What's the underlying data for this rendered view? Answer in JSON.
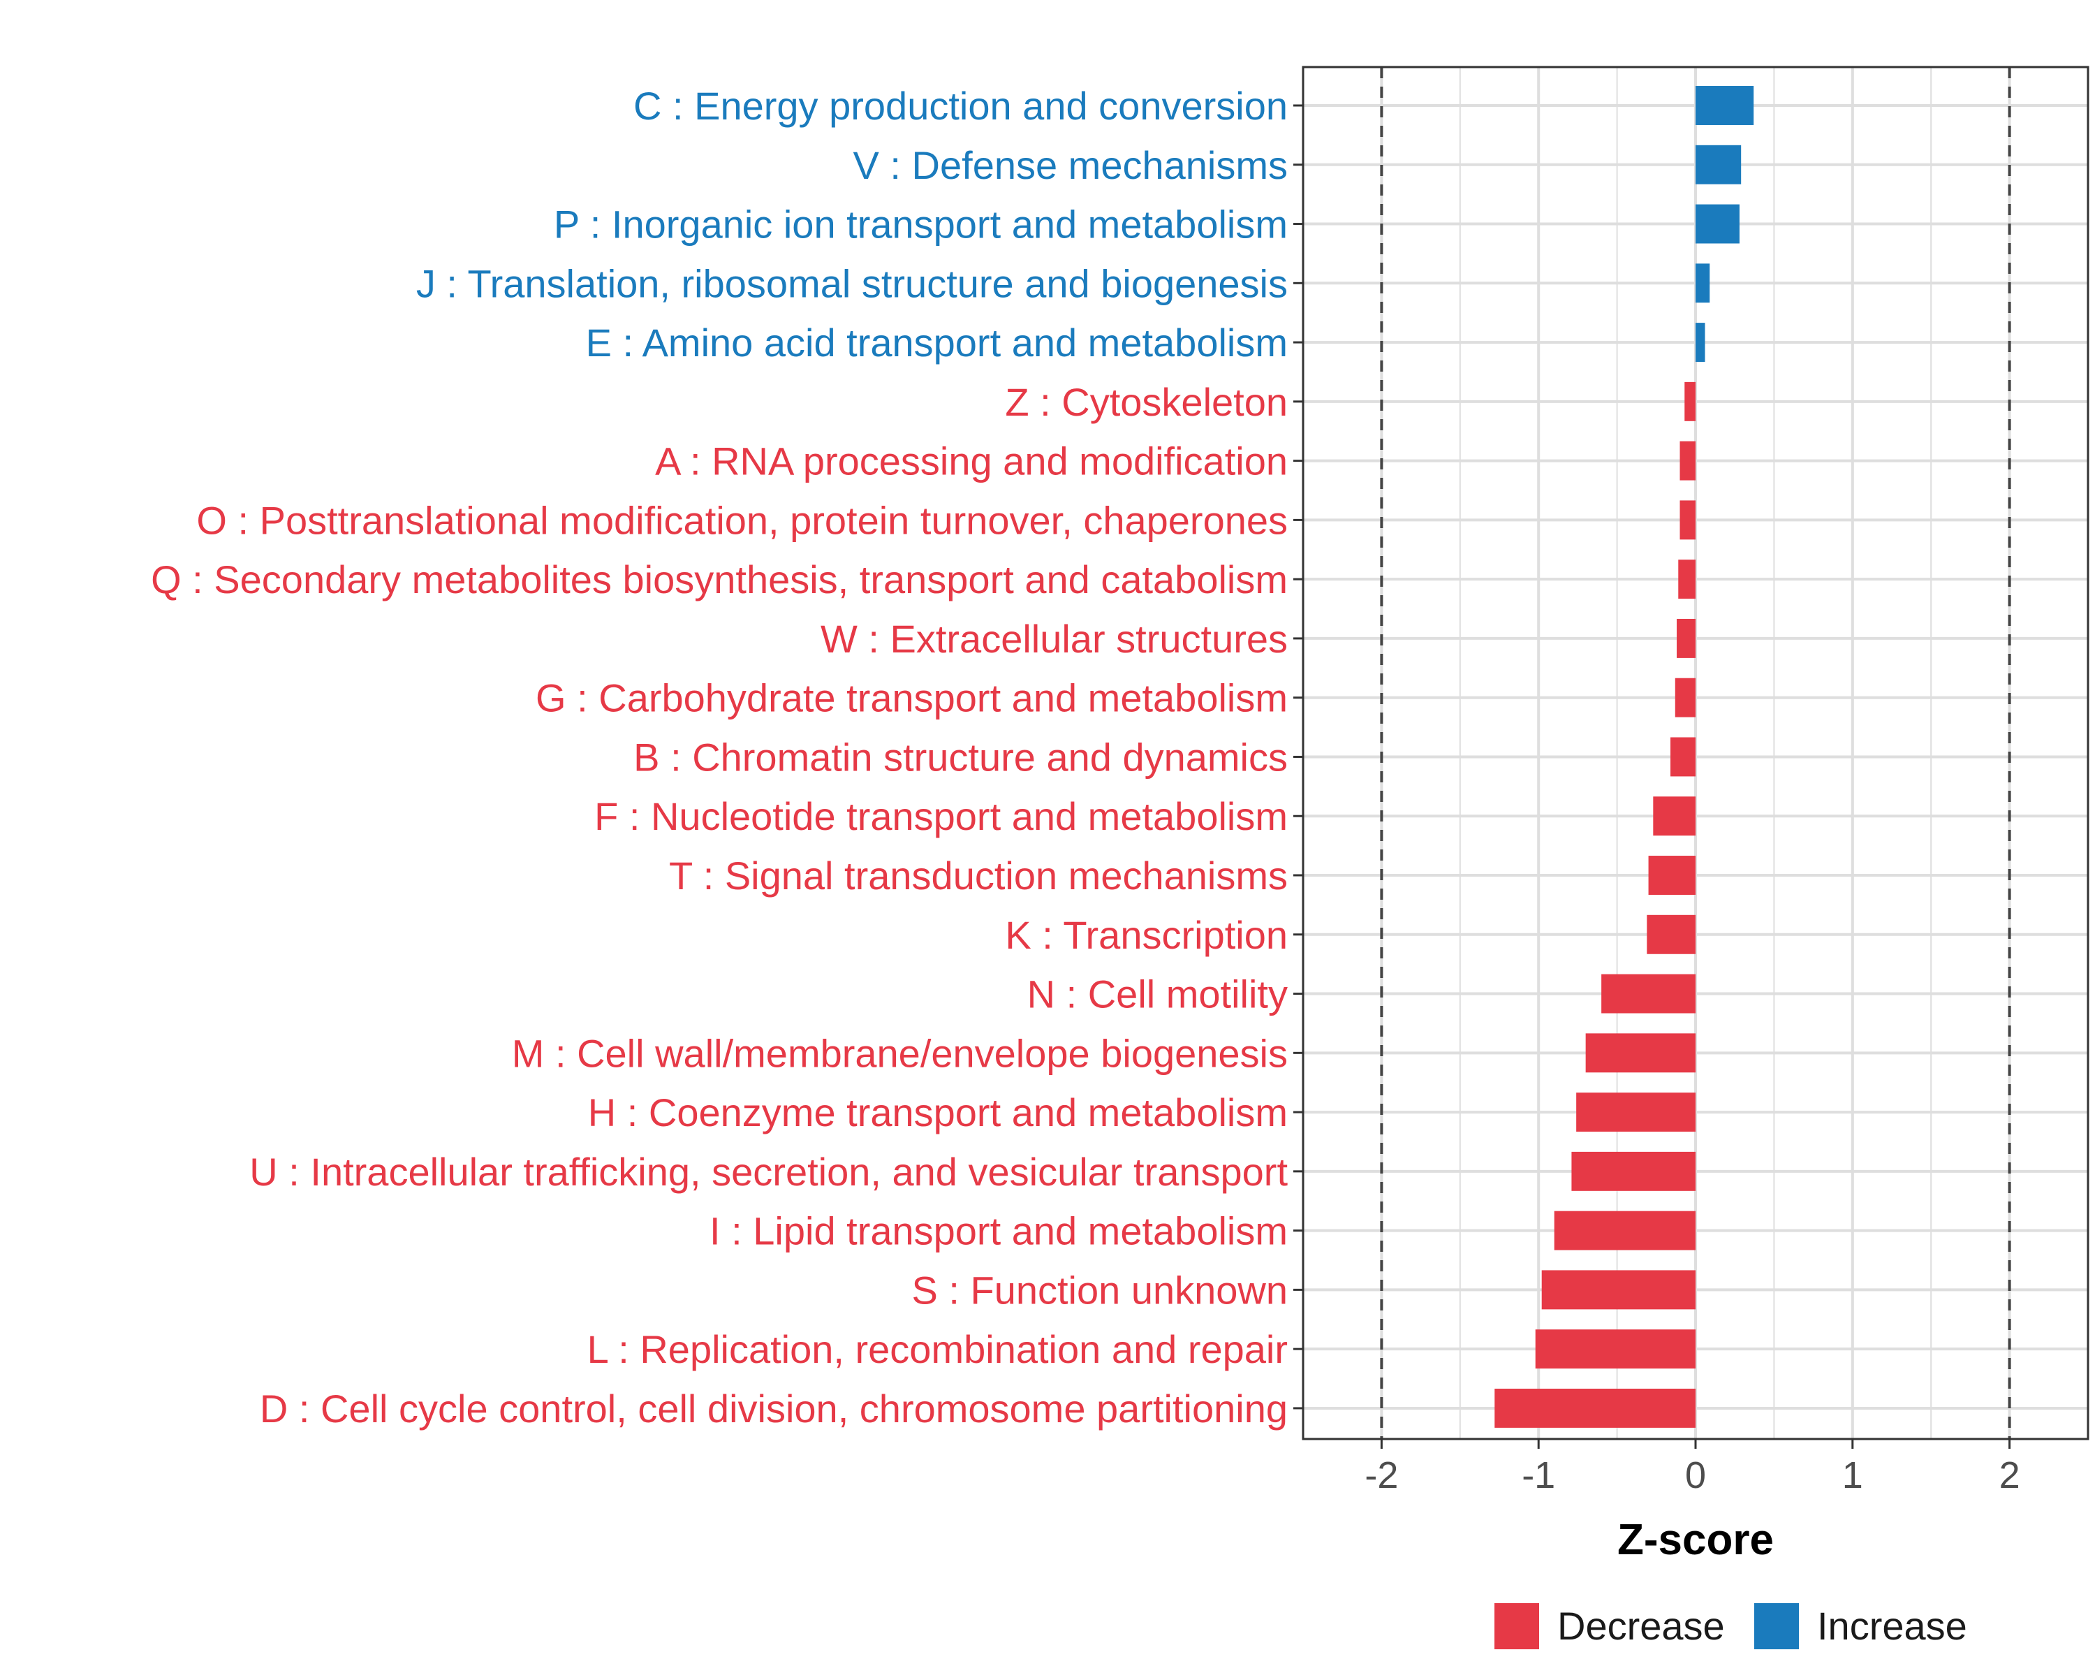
{
  "chart_data": {
    "type": "bar",
    "orientation": "horizontal",
    "xlabel": "Z-score",
    "xlim": [
      -2.5,
      2.5
    ],
    "xticks": [
      -2,
      -1,
      0,
      1,
      2
    ],
    "xtick_labels": [
      "-2",
      "-1",
      "0",
      "1",
      "2"
    ],
    "reference_lines": [
      -2,
      2
    ],
    "grid": true,
    "legend_position": "bottom",
    "colors": {
      "Decrease": "#e63946",
      "Increase": "#1a7bbd"
    },
    "legend": [
      {
        "label": "Decrease",
        "color": "#e63946"
      },
      {
        "label": "Increase",
        "color": "#1a7bbd"
      }
    ],
    "categories": [
      "C : Energy production and conversion",
      "V : Defense mechanisms",
      "P : Inorganic ion transport and metabolism",
      "J : Translation, ribosomal structure and biogenesis",
      "E : Amino acid transport and metabolism",
      "Z : Cytoskeleton",
      "A : RNA processing and modification",
      "O : Posttranslational modification, protein turnover, chaperones",
      "Q : Secondary metabolites biosynthesis, transport and catabolism",
      "W : Extracellular structures",
      "G : Carbohydrate transport and metabolism",
      "B : Chromatin structure and dynamics",
      "F : Nucleotide transport and metabolism",
      "T : Signal transduction mechanisms",
      "K : Transcription",
      "N : Cell motility",
      "M : Cell wall/membrane/envelope biogenesis",
      "H : Coenzyme transport and metabolism",
      "U : Intracellular trafficking, secretion, and vesicular transport",
      "I : Lipid transport and metabolism",
      "S : Function unknown",
      "L : Replication, recombination and repair",
      "D : Cell cycle control, cell division, chromosome partitioning"
    ],
    "values": [
      0.37,
      0.29,
      0.28,
      0.09,
      0.06,
      -0.07,
      -0.1,
      -0.1,
      -0.11,
      -0.12,
      -0.13,
      -0.16,
      -0.27,
      -0.3,
      -0.31,
      -0.6,
      -0.7,
      -0.76,
      -0.79,
      -0.9,
      -0.98,
      -1.02,
      -1.28
    ],
    "groups": [
      "Increase",
      "Increase",
      "Increase",
      "Increase",
      "Increase",
      "Decrease",
      "Decrease",
      "Decrease",
      "Decrease",
      "Decrease",
      "Decrease",
      "Decrease",
      "Decrease",
      "Decrease",
      "Decrease",
      "Decrease",
      "Decrease",
      "Decrease",
      "Decrease",
      "Decrease",
      "Decrease",
      "Decrease",
      "Decrease"
    ]
  }
}
